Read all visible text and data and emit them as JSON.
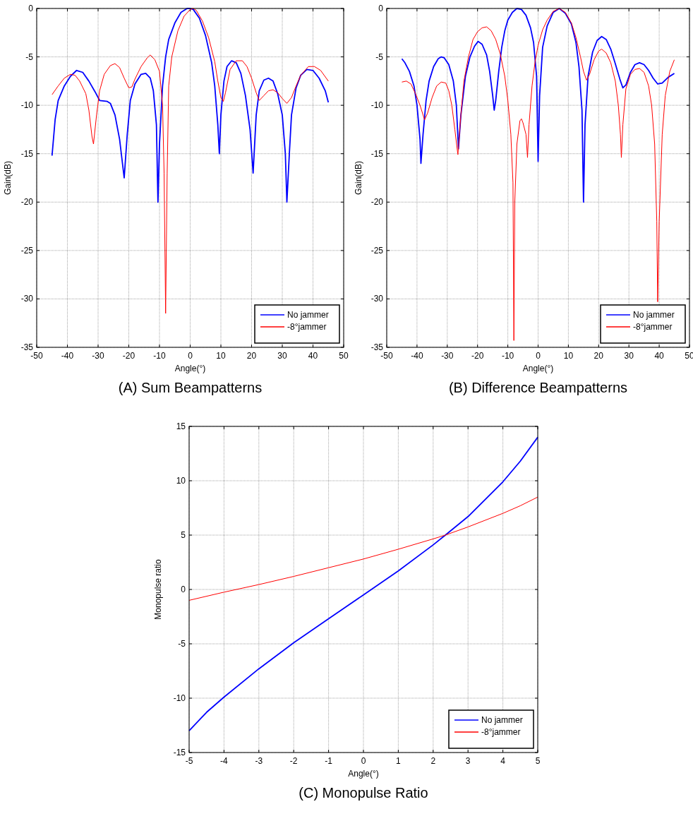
{
  "chart_data": [
    {
      "type": "line",
      "title": "(A) Sum Beampatterns",
      "xlabel": "Angle(°)",
      "ylabel": "Gain(dB)",
      "xlim": [
        -50,
        50
      ],
      "xticks": [
        -50,
        -40,
        -30,
        -20,
        -10,
        0,
        10,
        20,
        30,
        40,
        50
      ],
      "ylim": [
        -35,
        0
      ],
      "yticks": [
        -35,
        -30,
        -25,
        -20,
        -15,
        -10,
        -5,
        0
      ],
      "grid": true,
      "legend": "bottom right",
      "series": [
        {
          "name": "No jammer",
          "color": "#0000ff",
          "x": [
            -45,
            -44,
            -43,
            -41,
            -39,
            -37,
            -35,
            -33,
            -31,
            -29.5,
            -27,
            -26,
            -24.5,
            -23,
            -21.5,
            -20.5,
            -19.5,
            -18,
            -16,
            -14.5,
            -13,
            -12,
            -11,
            -10.5,
            -10,
            -9,
            -8,
            -7,
            -5,
            -3,
            -1,
            0,
            1,
            3,
            5,
            7,
            8,
            9,
            9.5,
            10,
            11,
            12,
            13.5,
            15,
            16.5,
            18,
            19.5,
            20.5,
            21.5,
            22.5,
            24,
            25.5,
            27,
            28.5,
            30,
            31,
            31.5,
            32.3,
            33,
            34.5,
            36,
            38,
            40,
            42,
            44,
            45
          ],
          "values": [
            -15.2,
            -11.5,
            -9.5,
            -8,
            -7,
            -6.4,
            -6.6,
            -7.5,
            -8.6,
            -9.5,
            -9.6,
            -9.8,
            -11,
            -13.5,
            -17.5,
            -13,
            -9.5,
            -7.8,
            -6.8,
            -6.7,
            -7.2,
            -8.5,
            -12,
            -20,
            -14,
            -8,
            -5,
            -3.2,
            -1.5,
            -0.4,
            0,
            0,
            -0.1,
            -1,
            -2.8,
            -5.6,
            -8,
            -12,
            -15,
            -11,
            -7.5,
            -6,
            -5.4,
            -5.6,
            -6.7,
            -9,
            -12.5,
            -17,
            -11,
            -8.5,
            -7.4,
            -7.2,
            -7.5,
            -8.8,
            -11,
            -15,
            -20,
            -15,
            -11,
            -8.2,
            -6.9,
            -6.3,
            -6.4,
            -7.2,
            -8.5,
            -9.7
          ]
        },
        {
          "name": "-8°jammer",
          "color": "#ff0000",
          "x": [
            -45,
            -43,
            -41,
            -39,
            -37.5,
            -36,
            -34,
            -33,
            -32,
            -31.5,
            -30.5,
            -29.5,
            -28,
            -26,
            -24.5,
            -23,
            -21.5,
            -20,
            -19,
            -18,
            -16,
            -14,
            -13,
            -11.5,
            -10,
            -9,
            -8.5,
            -8,
            -7.5,
            -7,
            -6,
            -4,
            -2,
            0,
            1,
            2,
            4,
            6,
            8,
            9,
            10,
            10.8,
            11.5,
            13,
            15,
            17,
            18.5,
            20,
            21.5,
            22.5,
            24,
            25.5,
            27,
            28.5,
            30,
            31.5,
            33,
            34.5,
            36,
            38.5,
            40.5,
            42.5,
            45
          ],
          "values": [
            -8.9,
            -8,
            -7.2,
            -6.8,
            -6.9,
            -7.5,
            -8.8,
            -10.5,
            -13.2,
            -14,
            -11,
            -8.5,
            -6.8,
            -5.9,
            -5.7,
            -6.1,
            -7.2,
            -8.2,
            -8.1,
            -7.3,
            -6,
            -5.1,
            -4.8,
            -5.3,
            -6.5,
            -10,
            -17,
            -31.5,
            -17,
            -8,
            -5,
            -2.3,
            -0.8,
            -0.1,
            0,
            -0.2,
            -1.3,
            -3,
            -5.5,
            -7.5,
            -9.2,
            -9.6,
            -8.7,
            -6.3,
            -5.4,
            -5.4,
            -6,
            -7.2,
            -8.7,
            -9.5,
            -9,
            -8.5,
            -8.4,
            -8.7,
            -9.3,
            -9.8,
            -9.2,
            -8,
            -6.9,
            -6,
            -6,
            -6.4,
            -7.5
          ]
        }
      ]
    },
    {
      "type": "line",
      "title": "(B) Difference Beampatterns",
      "xlabel": "Angle(°)",
      "ylabel": "Gain(dB)",
      "xlim": [
        -50,
        50
      ],
      "xticks": [
        -50,
        -40,
        -30,
        -20,
        -10,
        0,
        10,
        20,
        30,
        40,
        50
      ],
      "ylim": [
        -35,
        0
      ],
      "yticks": [
        -35,
        -30,
        -25,
        -20,
        -15,
        -10,
        -5,
        0
      ],
      "grid": true,
      "legend": "bottom right",
      "series": [
        {
          "name": "No jammer",
          "color": "#0000ff",
          "x": [
            -45,
            -44,
            -42.5,
            -41,
            -40,
            -39,
            -38.7,
            -38,
            -37,
            -36,
            -34.5,
            -33,
            -32,
            -31,
            -29.5,
            -28,
            -27,
            -26.3,
            -25.5,
            -24,
            -22.5,
            -21,
            -19.8,
            -18.5,
            -17,
            -16,
            -15,
            -14.5,
            -14,
            -13,
            -12,
            -11,
            -10,
            -8.5,
            -7,
            -5.5,
            -4,
            -2.5,
            -1.5,
            -0.5,
            0,
            0.5,
            1.5,
            3,
            5,
            7,
            9,
            11,
            12.5,
            13.5,
            14.5,
            15,
            15.5,
            16.5,
            18,
            19.5,
            21,
            22.5,
            24,
            25.5,
            27,
            28,
            29,
            30.5,
            32,
            33.5,
            35,
            36.5,
            38,
            39.5,
            41,
            43,
            45
          ],
          "values": [
            -5.2,
            -5.6,
            -6.5,
            -8,
            -10,
            -13.5,
            -16,
            -13,
            -9.5,
            -7.5,
            -6,
            -5.2,
            -5,
            -5.1,
            -5.8,
            -7.5,
            -10,
            -14.5,
            -11,
            -7,
            -5,
            -3.9,
            -3.4,
            -3.7,
            -4.8,
            -6.5,
            -9,
            -10.5,
            -9.5,
            -6.5,
            -4,
            -2.3,
            -1.2,
            -0.4,
            0,
            -0.1,
            -0.7,
            -2,
            -3.5,
            -7,
            -15.8,
            -9,
            -4,
            -1.8,
            -0.4,
            0,
            -0.5,
            -1.6,
            -3.5,
            -6,
            -10.5,
            -20,
            -12,
            -7,
            -4.5,
            -3.3,
            -2.9,
            -3.2,
            -4.2,
            -5.7,
            -7.3,
            -8.2,
            -7.9,
            -6.6,
            -5.8,
            -5.6,
            -5.8,
            -6.4,
            -7.2,
            -7.8,
            -7.7,
            -7.1,
            -6.7
          ]
        },
        {
          "name": "-8°jammer",
          "color": "#ff0000",
          "x": [
            -45,
            -43.5,
            -42,
            -40.5,
            -39,
            -37.5,
            -36.5,
            -35,
            -33.5,
            -32,
            -30.5,
            -29.5,
            -28.5,
            -27.5,
            -26.5,
            -25.5,
            -24.5,
            -23,
            -21.5,
            -20,
            -18.5,
            -17,
            -15.5,
            -14,
            -12.5,
            -11,
            -10,
            -9,
            -8.3,
            -8,
            -7.7,
            -7,
            -6,
            -5.5,
            -5,
            -4,
            -3.5,
            -3,
            -2,
            -1,
            0,
            1.5,
            3,
            5,
            7,
            9,
            11,
            12.5,
            14,
            15,
            16,
            17,
            18.5,
            20,
            21,
            22.5,
            24,
            25.5,
            26.5,
            27.2,
            27.5,
            28,
            29,
            30.5,
            32,
            33.5,
            35,
            36.5,
            37.5,
            38.5,
            39.2,
            39.5,
            40,
            41,
            42,
            43.5,
            45
          ],
          "values": [
            -7.6,
            -7.5,
            -7.8,
            -8.8,
            -10,
            -11.5,
            -10.8,
            -9.2,
            -8,
            -7.6,
            -7.7,
            -8.5,
            -10,
            -12.5,
            -15.1,
            -11,
            -7.5,
            -5,
            -3.2,
            -2.4,
            -2,
            -1.9,
            -2.3,
            -3.2,
            -4.7,
            -7,
            -9.5,
            -13,
            -18,
            -34.3,
            -20,
            -14,
            -11.6,
            -11.4,
            -11.8,
            -13,
            -15.4,
            -12,
            -8,
            -5.5,
            -3.8,
            -2.2,
            -1.2,
            -0.3,
            0,
            -0.4,
            -1.5,
            -3,
            -5,
            -6.5,
            -7.4,
            -6.8,
            -5.3,
            -4.4,
            -4.2,
            -4.6,
            -5.6,
            -7.5,
            -10,
            -13,
            -15.4,
            -12,
            -8.3,
            -6.8,
            -6.3,
            -6.2,
            -6.6,
            -8,
            -10,
            -14,
            -22,
            -30.3,
            -22,
            -13,
            -9,
            -6.5,
            -5.3
          ]
        }
      ]
    },
    {
      "type": "line",
      "title": "(C) Monopulse Ratio",
      "xlabel": "Angle(°)",
      "ylabel": "Monopulse ratio",
      "xlim": [
        -5,
        5
      ],
      "xticks": [
        -5,
        -4,
        -3,
        -2,
        -1,
        0,
        1,
        2,
        3,
        4,
        5
      ],
      "ylim": [
        -15,
        15
      ],
      "yticks": [
        -15,
        -10,
        -5,
        0,
        5,
        10,
        15
      ],
      "grid": true,
      "legend": "bottom right",
      "series": [
        {
          "name": "No jammer",
          "color": "#0000ff",
          "x": [
            -5,
            -4.5,
            -4,
            -3,
            -2,
            -1,
            0,
            1,
            2,
            2.35,
            3,
            4,
            4.5,
            5
          ],
          "values": [
            -13,
            -11.3,
            -9.9,
            -7.3,
            -4.9,
            -2.7,
            -0.5,
            1.7,
            4.1,
            5,
            6.7,
            9.9,
            11.8,
            14
          ]
        },
        {
          "name": "-8°jammer",
          "color": "#ff0000",
          "x": [
            -5,
            -4,
            -3,
            -2,
            -1,
            0,
            1,
            2,
            2.35,
            3,
            4,
            4.5,
            5
          ],
          "values": [
            -1,
            -0.25,
            0.45,
            1.2,
            2,
            2.8,
            3.7,
            4.65,
            5,
            5.75,
            7,
            7.7,
            8.5
          ]
        }
      ]
    }
  ]
}
